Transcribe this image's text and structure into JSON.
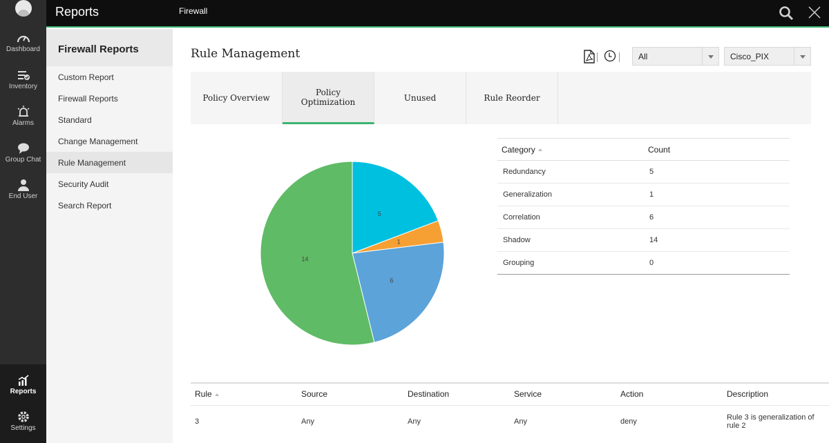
{
  "app": {
    "title": "Reports",
    "breadcrumb": "Firewall"
  },
  "rail": {
    "items": [
      {
        "label": "Dashboard",
        "icon": "dashboard-icon"
      },
      {
        "label": "Inventory",
        "icon": "inventory-icon"
      },
      {
        "label": "Alarms",
        "icon": "alarm-icon"
      },
      {
        "label": "Group Chat",
        "icon": "chat-icon"
      },
      {
        "label": "End User",
        "icon": "user-icon"
      }
    ],
    "reports_label": "Reports",
    "settings_label": "Settings"
  },
  "sidebar": {
    "heading": "Firewall Reports",
    "items": [
      {
        "label": "Custom Report"
      },
      {
        "label": "Firewall Reports"
      },
      {
        "label": "Standard"
      },
      {
        "label": "Change Management"
      },
      {
        "label": "Rule Management"
      },
      {
        "label": "Security Audit"
      },
      {
        "label": "Search Report"
      }
    ],
    "active": "Rule Management"
  },
  "main": {
    "title": "Rule Management",
    "filter": {
      "selected": "All"
    },
    "device": {
      "selected": "Cisco_PIX"
    },
    "tabs": [
      {
        "label": "Policy Overview"
      },
      {
        "label": "Policy\nOptimization"
      },
      {
        "label": "Unused"
      },
      {
        "label": "Rule Reorder"
      }
    ],
    "active_tab": "Policy Optimization"
  },
  "chart_data": {
    "type": "pie",
    "labels": [
      "Redundancy",
      "Generalization",
      "Correlation",
      "Shadow",
      "Grouping"
    ],
    "values": [
      5,
      1,
      6,
      14,
      0
    ],
    "colors": [
      "#00c0e0",
      "#f6a033",
      "#5ba3d9",
      "#5fbb65",
      "#999999"
    ]
  },
  "category_table": {
    "headers": [
      "Category",
      "Count"
    ],
    "rows": [
      [
        "Redundancy",
        "5"
      ],
      [
        "Generalization",
        "1"
      ],
      [
        "Correlation",
        "6"
      ],
      [
        "Shadow",
        "14"
      ],
      [
        "Grouping",
        "0"
      ]
    ]
  },
  "rule_table": {
    "headers": [
      "Rule",
      "Source",
      "Destination",
      "Service",
      "Action",
      "Description"
    ],
    "rows": [
      [
        "3",
        "Any",
        "Any",
        "Any",
        "deny",
        "Rule 3 is generalization of rule 2"
      ]
    ]
  }
}
